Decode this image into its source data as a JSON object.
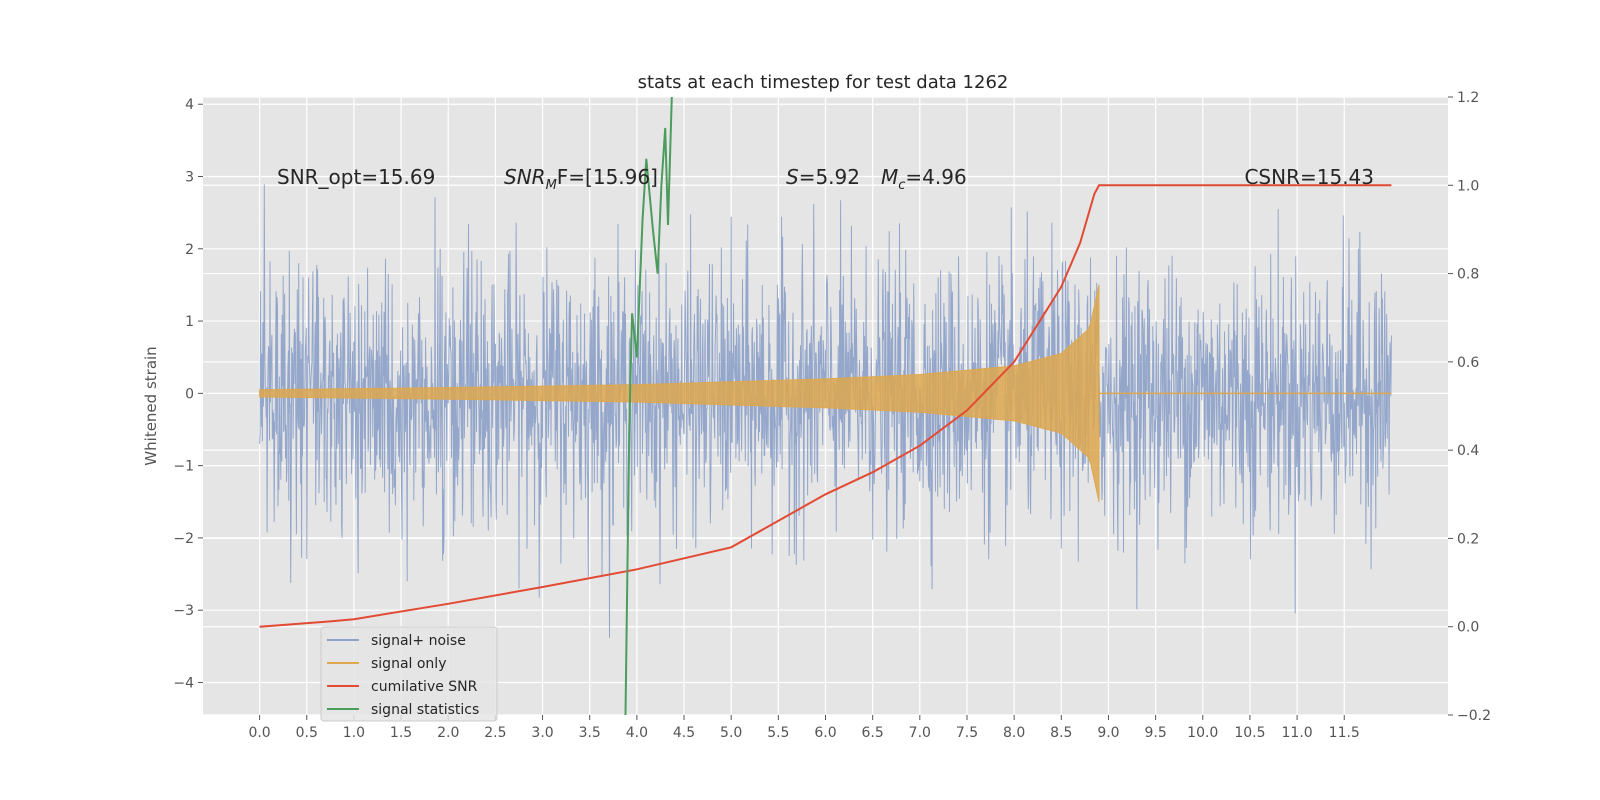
{
  "chart_data": {
    "type": "line",
    "title": "stats at each timestep for test data 1262",
    "xlabel": "",
    "ylabel": "Whitened strain",
    "y2label": "",
    "xlim": [
      -0.6,
      12.6
    ],
    "ylim": [
      -4.45,
      4.1
    ],
    "y2lim": [
      -0.2,
      1.2
    ],
    "grid": true,
    "legend_position": "lower-left",
    "x_ticks": [
      0.0,
      0.5,
      1.0,
      1.5,
      2.0,
      2.5,
      3.0,
      3.5,
      4.0,
      4.5,
      5.0,
      5.5,
      6.0,
      6.5,
      7.0,
      7.5,
      8.0,
      8.5,
      9.0,
      9.5,
      10.0,
      10.5,
      11.0,
      11.5
    ],
    "x_tick_labels": [
      "0.0",
      "0.5",
      "1.0",
      "1.5",
      "2.0",
      "2.5",
      "3.0",
      "3.5",
      "4.0",
      "4.5",
      "5.0",
      "5.5",
      "6.0",
      "6.5",
      "7.0",
      "7.5",
      "8.0",
      "8.5",
      "9.0",
      "9.5",
      "10.0",
      "10.5",
      "11.0",
      "11.5"
    ],
    "y_ticks": [
      -4,
      -3,
      -2,
      -1,
      0,
      1,
      2,
      3,
      4
    ],
    "y_tick_labels": [
      "−4",
      "−3",
      "−2",
      "−1",
      "0",
      "1",
      "2",
      "3",
      "4"
    ],
    "y2_ticks": [
      -0.2,
      0.0,
      0.2,
      0.4,
      0.6,
      0.8,
      1.0,
      1.2
    ],
    "y2_tick_labels": [
      "−0.2",
      "0.0",
      "0.2",
      "0.4",
      "0.6",
      "0.8",
      "1.0",
      "1.2"
    ],
    "annotations": {
      "snr_opt": "SNR_opt=15.69",
      "snr_mf_a": "SNR",
      "snr_mf_sub": "M",
      "snr_mf_b": "F=[15.96]",
      "s_label": "S",
      "s_value": "=5.92",
      "mc_label": "M",
      "mc_sub": "c",
      "mc_value": "=4.96",
      "csnr": "CSNR=15.43"
    },
    "series": [
      {
        "name": "signal+ noise",
        "axis": "left",
        "color": "#8fa3c9",
        "description_type": "noise",
        "x_range": [
          0.0,
          12.0
        ],
        "typical_amplitude": 1.7,
        "max_amplitude": 3.7
      },
      {
        "name": "signal only",
        "axis": "left",
        "color": "#dda74f",
        "description_type": "chirp",
        "x_range": [
          0.0,
          8.9
        ],
        "envelope": [
          [
            0.0,
            0.05
          ],
          [
            2.0,
            0.08
          ],
          [
            4.0,
            0.12
          ],
          [
            6.0,
            0.2
          ],
          [
            7.0,
            0.26
          ],
          [
            8.0,
            0.38
          ],
          [
            8.5,
            0.55
          ],
          [
            8.8,
            0.9
          ],
          [
            8.9,
            1.5
          ]
        ]
      },
      {
        "name": "cumilative SNR",
        "axis": "right",
        "color": "#e24a33",
        "points": [
          [
            0.0,
            0.0
          ],
          [
            0.75,
            0.012
          ],
          [
            1.0,
            0.017
          ],
          [
            2.0,
            0.052
          ],
          [
            3.0,
            0.09
          ],
          [
            4.0,
            0.13
          ],
          [
            5.0,
            0.18
          ],
          [
            6.0,
            0.3
          ],
          [
            6.5,
            0.35
          ],
          [
            7.0,
            0.41
          ],
          [
            7.5,
            0.49
          ],
          [
            8.0,
            0.6
          ],
          [
            8.5,
            0.77
          ],
          [
            8.7,
            0.87
          ],
          [
            8.85,
            0.98
          ],
          [
            8.9,
            1.0
          ],
          [
            12.0,
            1.0
          ]
        ]
      },
      {
        "name": "signal statistics",
        "axis": "right",
        "color": "#4c9c5e",
        "points": [
          [
            3.88,
            -0.2
          ],
          [
            3.92,
            0.45
          ],
          [
            3.95,
            0.71
          ],
          [
            4.0,
            0.61
          ],
          [
            4.06,
            0.92
          ],
          [
            4.1,
            1.06
          ],
          [
            4.17,
            0.9
          ],
          [
            4.22,
            0.8
          ],
          [
            4.26,
            1.0
          ],
          [
            4.3,
            1.13
          ],
          [
            4.33,
            0.91
          ],
          [
            4.37,
            1.2
          ]
        ]
      }
    ]
  },
  "legend": {
    "items": [
      {
        "label": "signal+ noise",
        "color": "#8fa3c9"
      },
      {
        "label": "signal only",
        "color": "#dda74f"
      },
      {
        "label": "cumilative SNR",
        "color": "#e24a33"
      },
      {
        "label": "signal statistics",
        "color": "#4c9c5e"
      }
    ]
  },
  "colors": {
    "plot_background": "#e5e5e5",
    "grid": "#ffffff",
    "tick_text": "#555555"
  }
}
